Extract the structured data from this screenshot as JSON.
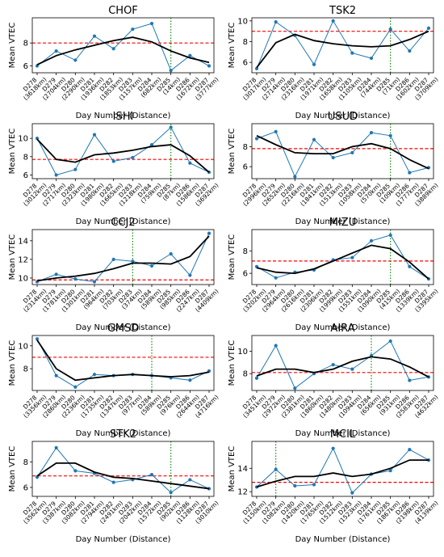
{
  "chart_data": [
    {
      "title": "CHOF",
      "ylabel": "Mean VTEC",
      "xlabel": "Day Number (Distance)",
      "ticks": [
        [
          "D278",
          "(3618km)"
        ],
        [
          "D279",
          "(2704km)"
        ],
        [
          "D280",
          "(2290km)"
        ],
        [
          "D281",
          "(1936km)"
        ],
        [
          "D282",
          "(1853km)"
        ],
        [
          "D283",
          "(1157km)"
        ],
        [
          "D284",
          "(682km)"
        ],
        [
          "D285",
          "(14km)"
        ],
        [
          "D286",
          "(1672km)"
        ],
        [
          "D287",
          "(3777km)"
        ]
      ],
      "ylim": [
        5.4,
        10.2
      ],
      "yticks": [
        6,
        8
      ],
      "vtec": [
        6.0,
        7.3,
        6.5,
        8.6,
        7.5,
        9.2,
        9.7,
        5.6,
        6.9,
        6.0
      ],
      "trend": [
        6.1,
        6.9,
        7.4,
        7.8,
        8.2,
        8.5,
        8.1,
        7.3,
        6.7,
        6.3
      ],
      "threshold": 8.0,
      "event_index": 7
    },
    {
      "title": "TSK2",
      "ylabel": "Mean VTEC",
      "xlabel": "Day Number (Distance)",
      "ticks": [
        [
          "D278",
          "(3017km)"
        ],
        [
          "D279",
          "(2714km)"
        ],
        [
          "D280",
          "(2316km)"
        ],
        [
          "D281",
          "(1971km)"
        ],
        [
          "D282",
          "(1658km)"
        ],
        [
          "D283",
          "(1105km)"
        ],
        [
          "D284",
          "(744km)"
        ],
        [
          "D285",
          "(71km)"
        ],
        [
          "D286",
          "(1602km)"
        ],
        [
          "D287",
          "(3709km)"
        ]
      ],
      "ylim": [
        5.0,
        10.3
      ],
      "yticks": [
        6,
        8,
        10
      ],
      "vtec": [
        5.4,
        9.9,
        8.6,
        5.8,
        10.0,
        6.9,
        6.4,
        9.2,
        7.1,
        9.3
      ],
      "trend": [
        5.5,
        7.9,
        8.7,
        8.1,
        7.8,
        7.6,
        7.5,
        7.6,
        8.2,
        9.0
      ],
      "threshold": 9.0,
      "event_index": 7
    },
    {
      "title": "ISHI",
      "ylabel": "Mean VTEC",
      "xlabel": "Day Number (Distance)",
      "ticks": [
        [
          "D278",
          "(3012km)"
        ],
        [
          "D279",
          "(2717km)"
        ],
        [
          "D280",
          "(2323km)"
        ],
        [
          "D281",
          "(1980km)"
        ],
        [
          "D282",
          "(1665km)"
        ],
        [
          "D283",
          "(1218km)"
        ],
        [
          "D284",
          "(759km)"
        ],
        [
          "D285",
          "(87km)"
        ],
        [
          "D286",
          "(1586km)"
        ],
        [
          "D287",
          "(3692km)"
        ]
      ],
      "ylim": [
        5.6,
        11.6
      ],
      "yticks": [
        6,
        8,
        10
      ],
      "vtec": [
        10.0,
        6.0,
        6.6,
        10.4,
        7.5,
        7.9,
        9.3,
        11.2,
        7.3,
        6.3
      ],
      "trend": [
        9.9,
        7.7,
        7.4,
        8.2,
        8.4,
        8.7,
        9.1,
        9.3,
        8.1,
        6.3
      ],
      "threshold": 7.7,
      "event_index": 7
    },
    {
      "title": "USUD",
      "ylabel": "Mean VTEC",
      "xlabel": "Day Number (Distance)",
      "ticks": [
        [
          "D278",
          "(2996km)"
        ],
        [
          "D279",
          "(2652km)"
        ],
        [
          "D280",
          "(2216km)"
        ],
        [
          "D281",
          "(1841km)"
        ],
        [
          "D282",
          "(1513km)"
        ],
        [
          "D283",
          "(1058km)"
        ],
        [
          "D284",
          "(570km)"
        ],
        [
          "D285",
          "(109km)"
        ],
        [
          "D286",
          "(1777km)"
        ],
        [
          "D287",
          "(3889km)"
        ]
      ],
      "ylim": [
        4.8,
        10.3
      ],
      "yticks": [
        6,
        8
      ],
      "vtec": [
        8.8,
        9.5,
        5.0,
        8.7,
        6.9,
        7.4,
        9.4,
        9.1,
        5.4,
        5.9
      ],
      "trend": [
        9.1,
        8.2,
        7.4,
        7.3,
        7.3,
        8.0,
        8.3,
        7.8,
        6.7,
        5.8
      ],
      "threshold": 7.8,
      "event_index": 7
    },
    {
      "title": "CCJ2",
      "ylabel": "Mean VTEC",
      "xlabel": "Day Number (Distance)",
      "ticks": [
        [
          "D278",
          "(2314km)"
        ],
        [
          "D279",
          "(1781km)"
        ],
        [
          "D280",
          "(1301km)"
        ],
        [
          "D281",
          "(964km)"
        ],
        [
          "D282",
          "(703km)"
        ],
        [
          "D283",
          "(374km)"
        ],
        [
          "D284",
          "(589km)"
        ],
        [
          "D285",
          "(985km)"
        ],
        [
          "D286",
          "(2247km)"
        ],
        [
          "D287",
          "(4409km)"
        ]
      ],
      "ylim": [
        9.3,
        15.2
      ],
      "yticks": [
        10,
        12,
        14
      ],
      "vtec": [
        9.6,
        10.4,
        9.9,
        9.6,
        12.0,
        11.8,
        11.3,
        12.6,
        10.3,
        14.8
      ],
      "trend": [
        9.7,
        10.0,
        10.2,
        10.5,
        11.0,
        11.6,
        11.6,
        11.5,
        12.3,
        14.5
      ],
      "threshold": 9.8,
      "event_index": 5
    },
    {
      "title": "MIZU",
      "ylabel": "Mean VTEC",
      "xlabel": "Day Number (Distance)",
      "ticks": [
        [
          "D278",
          "(3202km)"
        ],
        [
          "D279",
          "(2964km)"
        ],
        [
          "D280",
          "(2616km)"
        ],
        [
          "D281",
          "(2306km)"
        ],
        [
          "D282",
          "(1999km)"
        ],
        [
          "D283",
          "(1551km)"
        ],
        [
          "D284",
          "(1090km)"
        ],
        [
          "D285",
          "(415km)"
        ],
        [
          "D286",
          "(1339km)"
        ],
        [
          "D287",
          "(3395km)"
        ]
      ],
      "ylim": [
        5.0,
        9.9
      ],
      "yticks": [
        6,
        8
      ],
      "vtec": [
        6.6,
        5.6,
        6.1,
        6.3,
        7.2,
        7.4,
        8.9,
        9.4,
        6.6,
        5.5
      ],
      "trend": [
        6.5,
        6.1,
        6.0,
        6.4,
        7.1,
        7.8,
        8.5,
        8.2,
        7.0,
        5.5
      ],
      "threshold": 7.1,
      "event_index": 7
    },
    {
      "title": "GMSD",
      "ylabel": "Mean VTEC",
      "xlabel": "Day Number (Distance)",
      "ticks": [
        [
          "D278",
          "(3356km)"
        ],
        [
          "D279",
          "(2860km)"
        ],
        [
          "D280",
          "(2236km)"
        ],
        [
          "D281",
          "(1735km)"
        ],
        [
          "D282",
          "(1347km)"
        ],
        [
          "D283",
          "(977km)"
        ],
        [
          "D284",
          "(589km)"
        ],
        [
          "D285",
          "(976km)"
        ],
        [
          "D286",
          "(2644km)"
        ],
        [
          "D287",
          "(4716km)"
        ]
      ],
      "ylim": [
        6.1,
        10.9
      ],
      "yticks": [
        8,
        10
      ],
      "vtec": [
        10.6,
        7.4,
        6.4,
        7.5,
        7.4,
        7.5,
        7.4,
        7.2,
        7.0,
        7.8
      ],
      "trend": [
        10.5,
        8.0,
        7.0,
        7.2,
        7.4,
        7.5,
        7.4,
        7.3,
        7.4,
        7.7
      ],
      "threshold": 9.0,
      "event_index": 6
    },
    {
      "title": "AIRA",
      "ylabel": "Mean VTEC",
      "xlabel": "Day Number (Distance)",
      "ticks": [
        [
          "D278",
          "(3451km)"
        ],
        [
          "D279",
          "(2972km)"
        ],
        [
          "D280",
          "(2381km)"
        ],
        [
          "D281",
          "(1860km)"
        ],
        [
          "D282",
          "(1480km)"
        ],
        [
          "D283",
          "(1094km)"
        ],
        [
          "D284",
          "(656km)"
        ],
        [
          "D285",
          "(931km)"
        ],
        [
          "D286",
          "(2583km)"
        ],
        [
          "D287",
          "(4632km)"
        ]
      ],
      "ylim": [
        6.5,
        11.4
      ],
      "yticks": [
        8,
        10
      ],
      "vtec": [
        7.6,
        10.5,
        6.7,
        8.0,
        8.8,
        8.4,
        9.6,
        10.9,
        7.4,
        7.7
      ],
      "trend": [
        7.8,
        8.4,
        8.4,
        8.1,
        8.4,
        9.1,
        9.5,
        9.3,
        8.6,
        7.7
      ],
      "threshold": 8.1,
      "event_index": 6
    },
    {
      "title": "STK2",
      "ylabel": "Mean VTEC",
      "xlabel": "Day Number (Distance)",
      "ticks": [
        [
          "D278",
          "(3562km)"
        ],
        [
          "D279",
          "(3387km)"
        ],
        [
          "D280",
          "(3082km)"
        ],
        [
          "D281",
          "(2794km)"
        ],
        [
          "D282",
          "(2491km)"
        ],
        [
          "D283",
          "(2042km)"
        ],
        [
          "D284",
          "(1572km)"
        ],
        [
          "D285",
          "(902km)"
        ],
        [
          "D286",
          "(1128km)"
        ],
        [
          "D287",
          "(3010km)"
        ]
      ],
      "ylim": [
        5.3,
        9.6
      ],
      "yticks": [
        6,
        8
      ],
      "vtec": [
        6.8,
        9.1,
        7.3,
        7.1,
        6.4,
        6.6,
        7.0,
        5.6,
        6.6,
        5.9
      ],
      "trend": [
        6.9,
        7.9,
        7.9,
        7.2,
        6.8,
        6.7,
        6.5,
        6.3,
        6.1,
        5.9
      ],
      "threshold": 6.9,
      "event_index": 7
    },
    {
      "title": "MCIL",
      "ylabel": "Mean VTEC",
      "xlabel": "Day Number (Distance)",
      "ticks": [
        [
          "D278",
          "(1150km)"
        ],
        [
          "D279",
          "(1082km)"
        ],
        [
          "D280",
          "(1420km)"
        ],
        [
          "D281",
          "(1765km)"
        ],
        [
          "D282",
          "(1512km)"
        ],
        [
          "D283",
          "(1523km)"
        ],
        [
          "D284",
          "(1761km)"
        ],
        [
          "D285",
          "(1867km)"
        ],
        [
          "D286",
          "(2198km)"
        ],
        [
          "D287",
          "(4139km)"
        ]
      ],
      "ylim": [
        11.6,
        16.3
      ],
      "yticks": [
        12,
        14
      ],
      "vtec": [
        12.4,
        13.9,
        12.5,
        12.6,
        15.7,
        11.9,
        13.5,
        13.8,
        15.6,
        14.7
      ],
      "trend": [
        12.4,
        12.9,
        13.3,
        13.3,
        13.6,
        13.3,
        13.5,
        14.0,
        14.7,
        14.7
      ],
      "threshold": 12.8,
      "event_index": 1
    }
  ],
  "colors": {
    "vtec": "#1f77b4",
    "trend": "#000000",
    "threshold": "#ff0000",
    "event": "#008000"
  }
}
